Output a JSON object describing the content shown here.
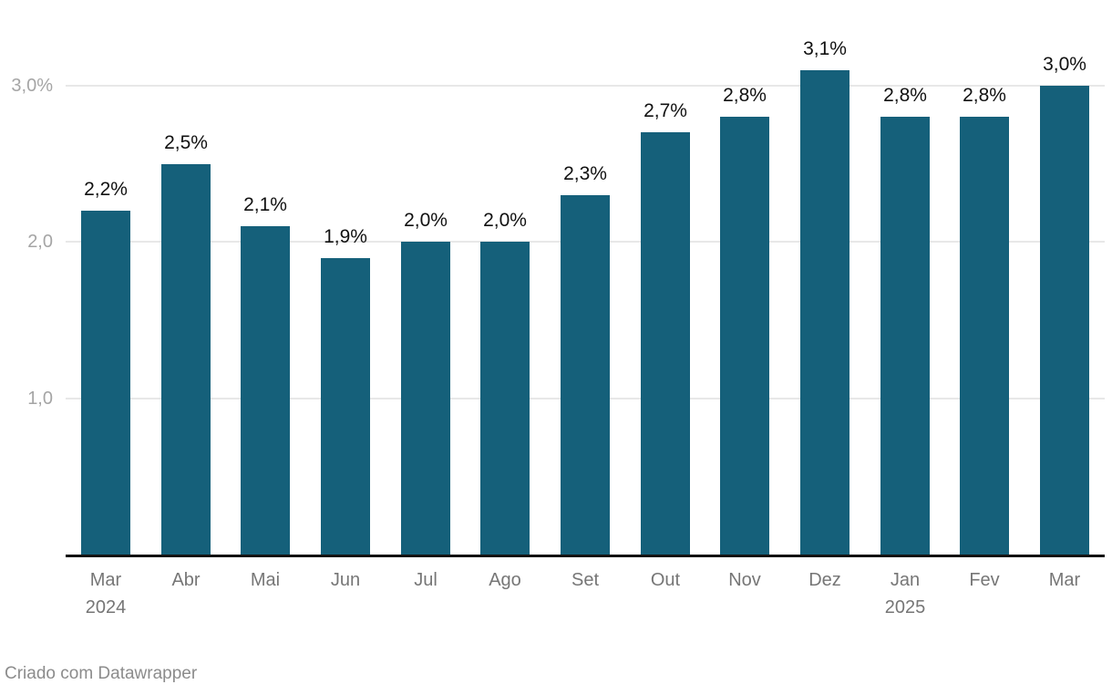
{
  "chart_data": {
    "type": "bar",
    "categories": [
      "Mar",
      "Abr",
      "Mai",
      "Jun",
      "Jul",
      "Ago",
      "Set",
      "Out",
      "Nov",
      "Dez",
      "Jan",
      "Fev",
      "Mar"
    ],
    "category_sublabels": [
      "2024",
      "",
      "",
      "",
      "",
      "",
      "",
      "",
      "",
      "",
      "2025",
      "",
      ""
    ],
    "values": [
      2.2,
      2.5,
      2.1,
      1.9,
      2.0,
      2.0,
      2.3,
      2.7,
      2.8,
      3.1,
      2.8,
      2.8,
      3.0
    ],
    "value_labels": [
      "2,2%",
      "2,5%",
      "2,1%",
      "1,9%",
      "2,0%",
      "2,0%",
      "2,3%",
      "2,7%",
      "2,8%",
      "3,1%",
      "2,8%",
      "2,8%",
      "3,0%"
    ],
    "y_ticks": [
      {
        "value": 1.0,
        "label": "1,0"
      },
      {
        "value": 2.0,
        "label": "2,0"
      },
      {
        "value": 3.0,
        "label": "3,0%"
      }
    ],
    "ylim": [
      0,
      3.3
    ],
    "grid": true,
    "legend": "none",
    "xlabel": "",
    "ylabel": ""
  },
  "footer": {
    "credit": "Criado com Datawrapper"
  },
  "colors": {
    "bar": "#15607a",
    "gridline": "#e8e8e8",
    "axis_line": "#121212",
    "y_tick_text": "#a5a5a5",
    "x_tick_text": "#767676",
    "value_label_text": "#111111",
    "footer_text": "#8c8c8c",
    "background": "#ffffff"
  }
}
